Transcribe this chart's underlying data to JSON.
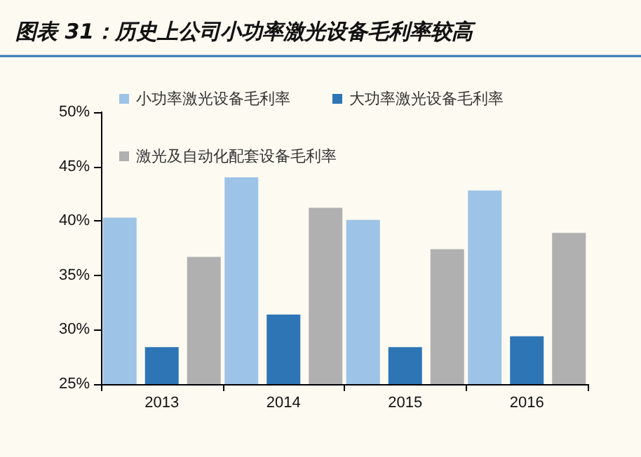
{
  "chart_data": {
    "type": "bar",
    "title": "图表 31：历史上公司小功率激光设备毛利率较高",
    "categories": [
      "2013",
      "2014",
      "2015",
      "2016"
    ],
    "series": [
      {
        "name": "小功率激光设备毛利率",
        "color": "#9dc3e6",
        "values": [
          40.3,
          44.0,
          40.1,
          42.8
        ]
      },
      {
        "name": "大功率激光设备毛利率",
        "color": "#2e75b6",
        "values": [
          28.4,
          31.4,
          28.4,
          29.4
        ]
      },
      {
        "name": "激光及自动化配套设备毛利率",
        "color": "#b0b0b0",
        "values": [
          36.7,
          41.2,
          37.4,
          38.9
        ]
      }
    ],
    "ylim": [
      25,
      50
    ],
    "yticks": [
      {
        "value": 25,
        "label": "25%"
      },
      {
        "value": 30,
        "label": "30%"
      },
      {
        "value": 35,
        "label": "35%"
      },
      {
        "value": 40,
        "label": "40%"
      },
      {
        "value": 45,
        "label": "45%"
      },
      {
        "value": 50,
        "label": "50%"
      }
    ],
    "grid": false,
    "legend": "top left"
  }
}
